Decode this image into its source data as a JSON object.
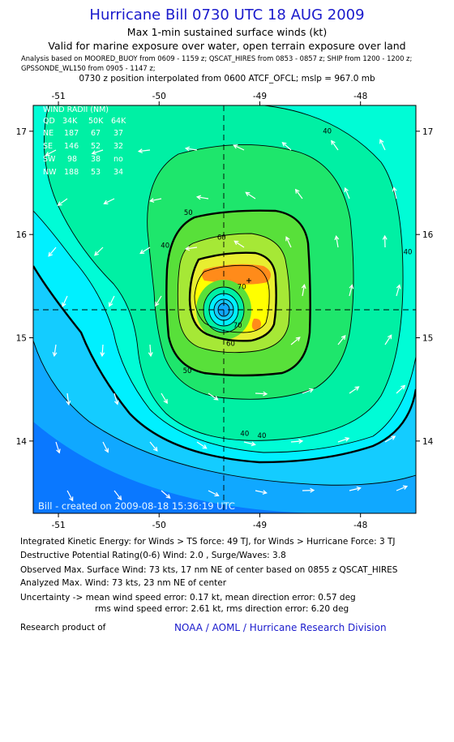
{
  "header": {
    "title": "Hurricane Bill 0730 UTC 18 AUG 2009",
    "subtitle": "Max 1-min sustained surface winds (kt)",
    "validity": "Valid for marine exposure over water, open terrain exposure over land",
    "analysis_line1": "Analysis based on  MOORED_BUOY from 0609 - 1159 z;  QSCAT_HIRES from 0853 - 0857 z;  SHIP from 1200 - 1200 z;",
    "analysis_line2": "GPSSONDE_WL150 from 0905 - 1147 z;",
    "position_line": "0730 z position interpolated from 0600 ATCF_OFCL; mslp = 967.0 mb"
  },
  "wind_radii": {
    "title": "WIND RADII (NM)",
    "header": [
      "QD",
      "34K",
      "50K",
      "64K"
    ],
    "rows": [
      [
        "NE",
        "187",
        "67",
        "37"
      ],
      [
        "SE",
        "146",
        "52",
        "32"
      ],
      [
        "SW",
        "98",
        "38",
        "no"
      ],
      [
        "NW",
        "188",
        "53",
        "34"
      ]
    ]
  },
  "watermark": "Bill - created on 2009-08-18 15:36:19 UTC",
  "colors": {
    "title_blue": "#1a1acc",
    "bands": [
      "#0a78ff",
      "#10a8ff",
      "#14ccff",
      "#00f0ff",
      "#00fcd6",
      "#00f0a4",
      "#1ee66c",
      "#58e03a",
      "#a6e836",
      "#e8ee30",
      "#ffff00",
      "#ff8b1a"
    ]
  },
  "chart_data": {
    "type": "contour",
    "x_ticks": [
      "-51",
      "-50",
      "-49",
      "-48"
    ],
    "y_ticks": [
      "14",
      "15",
      "16",
      "17"
    ],
    "xlim": [
      -51.25,
      -47.45
    ],
    "ylim": [
      13.3,
      17.25
    ],
    "center": {
      "lon": -49.3,
      "lat": 15.28
    },
    "contour_labels": [
      {
        "text": "40",
        "lon": -48.33,
        "lat": 16.98
      },
      {
        "text": "40",
        "lon": -49.94,
        "lat": 15.87
      },
      {
        "text": "40",
        "lon": -47.53,
        "lat": 15.81
      },
      {
        "text": "40",
        "lon": -49.15,
        "lat": 14.05
      },
      {
        "text": "40",
        "lon": -48.98,
        "lat": 14.03
      },
      {
        "text": "50",
        "lon": -49.71,
        "lat": 16.19
      },
      {
        "text": "50",
        "lon": -49.72,
        "lat": 14.66
      },
      {
        "text": "60",
        "lon": -49.38,
        "lat": 15.95
      },
      {
        "text": "60",
        "lon": -49.29,
        "lat": 14.92
      },
      {
        "text": "70",
        "lon": -49.18,
        "lat": 15.47
      },
      {
        "text": "70",
        "lon": -49.22,
        "lat": 15.1
      }
    ]
  },
  "footer": {
    "ike": "Integrated Kinetic Energy:  for Winds > TS force: 49 TJ,  for Winds > Hurricane Force: 3 TJ",
    "dpr": "Destructive Potential Rating(0-6)   Wind: 2.0 , Surge/Waves: 3.8",
    "observed": "Observed Max. Surface Wind: 73 kts, 17 nm NE of center based on 0855 z QSCAT_HIRES",
    "analyzed": "Analyzed Max. Wind: 73 kts, 23 nm NE of center",
    "uncertainty1": "Uncertainty -> mean wind speed error: 0.17 kt,   mean direction error: 0.57 deg",
    "uncertainty2": "rms wind speed error: 2.61 kt,   rms direction error: 6.20 deg",
    "research": "Research product of",
    "org": "NOAA / AOML / Hurricane Research Division"
  }
}
